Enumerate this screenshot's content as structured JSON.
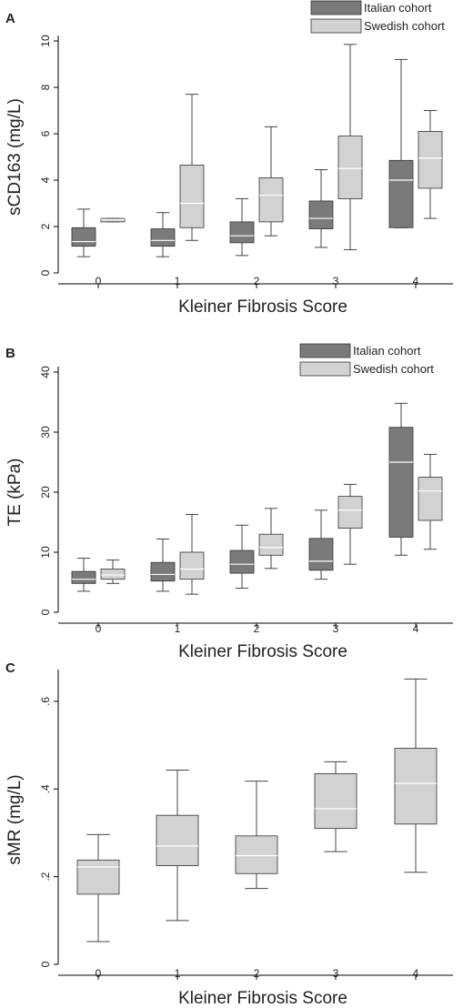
{
  "figure": {
    "colors": {
      "italian": "#7a7a7a",
      "swedish": "#d2d2d2",
      "axis": "#000000",
      "whisker": "#444444"
    }
  },
  "chart_data": [
    {
      "type": "boxplot",
      "panel": "A",
      "ylabel": "sCD163 (mg/L)",
      "xlabel": "Kleiner Fibrosis Score",
      "ylim": [
        0,
        10
      ],
      "yticks": [
        "0",
        "2",
        "4",
        "6",
        "8",
        "10"
      ],
      "ytick_values": [
        0,
        2,
        4,
        6,
        8,
        10
      ],
      "categories": [
        "0",
        "1",
        "2",
        "3",
        "4"
      ],
      "legend_position": "top-right",
      "series": [
        {
          "name": "Italian cohort",
          "color": "#7a7a7a",
          "boxes": [
            {
              "min": 0.7,
              "q1": 1.15,
              "median": 1.35,
              "q3": 1.95,
              "max": 2.75
            },
            {
              "min": 0.7,
              "q1": 1.15,
              "median": 1.4,
              "q3": 1.9,
              "max": 2.6
            },
            {
              "min": 0.75,
              "q1": 1.3,
              "median": 1.6,
              "q3": 2.2,
              "max": 3.2
            },
            {
              "min": 1.1,
              "q1": 1.9,
              "median": 2.35,
              "q3": 3.1,
              "max": 4.45
            },
            {
              "min": 1.95,
              "q1": 1.95,
              "median": 4.0,
              "q3": 4.85,
              "max": 9.2
            }
          ]
        },
        {
          "name": "Swedish cohort",
          "color": "#d2d2d2",
          "boxes": [
            {
              "min": 2.2,
              "q1": 2.2,
              "median": 2.3,
              "q3": 2.35,
              "max": 2.35
            },
            {
              "min": 1.4,
              "q1": 1.95,
              "median": 3.0,
              "q3": 4.65,
              "max": 7.7
            },
            {
              "min": 1.6,
              "q1": 2.2,
              "median": 3.35,
              "q3": 4.1,
              "max": 6.3
            },
            {
              "min": 1.0,
              "q1": 3.2,
              "median": 4.5,
              "q3": 5.9,
              "max": 9.85
            },
            {
              "min": 2.35,
              "q1": 3.65,
              "median": 4.95,
              "q3": 6.1,
              "max": 7.0
            }
          ]
        }
      ]
    },
    {
      "type": "boxplot",
      "panel": "B",
      "ylabel": "TE (kPa)",
      "xlabel": "Kleiner Fibrosis Score",
      "ylim": [
        0,
        40
      ],
      "yticks": [
        "0",
        "10",
        "20",
        "30",
        "40"
      ],
      "ytick_values": [
        0,
        10,
        20,
        30,
        40
      ],
      "categories": [
        "0",
        "1",
        "2",
        "3",
        "4"
      ],
      "legend_position": "top-right",
      "series": [
        {
          "name": "Italian cohort",
          "color": "#7a7a7a",
          "boxes": [
            {
              "min": 3.5,
              "q1": 4.8,
              "median": 5.5,
              "q3": 6.8,
              "max": 9.0
            },
            {
              "min": 3.5,
              "q1": 5.2,
              "median": 6.3,
              "q3": 8.3,
              "max": 12.2
            },
            {
              "min": 4.0,
              "q1": 6.5,
              "median": 8.0,
              "q3": 10.3,
              "max": 14.5
            },
            {
              "min": 5.5,
              "q1": 7.0,
              "median": 8.5,
              "q3": 12.3,
              "max": 17.0
            },
            {
              "min": 9.5,
              "q1": 12.5,
              "median": 25.0,
              "q3": 30.8,
              "max": 34.8
            }
          ]
        },
        {
          "name": "Swedish cohort",
          "color": "#d2d2d2",
          "boxes": [
            {
              "min": 4.8,
              "q1": 5.5,
              "median": 6.2,
              "q3": 7.2,
              "max": 8.7
            },
            {
              "min": 3.0,
              "q1": 5.5,
              "median": 7.2,
              "q3": 10.0,
              "max": 16.3
            },
            {
              "min": 7.3,
              "q1": 9.5,
              "median": 10.8,
              "q3": 13.0,
              "max": 17.3
            },
            {
              "min": 8.0,
              "q1": 14.0,
              "median": 17.0,
              "q3": 19.3,
              "max": 21.3
            },
            {
              "min": 10.5,
              "q1": 15.3,
              "median": 20.2,
              "q3": 22.5,
              "max": 26.3
            }
          ]
        }
      ]
    },
    {
      "type": "boxplot",
      "panel": "C",
      "ylabel": "sMR (mg/L)",
      "xlabel": "Kleiner Fibrosis Score",
      "ylim": [
        0,
        0.66
      ],
      "yticks": [
        "0",
        ".2",
        ".4",
        ".6"
      ],
      "ytick_values": [
        0,
        0.2,
        0.4,
        0.6
      ],
      "categories": [
        "0",
        "1",
        "2",
        "3",
        "4"
      ],
      "series": [
        {
          "name": "",
          "color": "#d2d2d2",
          "boxes": [
            {
              "min": 0.052,
              "q1": 0.16,
              "median": 0.222,
              "q3": 0.238,
              "max": 0.296
            },
            {
              "min": 0.1,
              "q1": 0.225,
              "median": 0.27,
              "q3": 0.34,
              "max": 0.443
            },
            {
              "min": 0.173,
              "q1": 0.207,
              "median": 0.248,
              "q3": 0.293,
              "max": 0.418
            },
            {
              "min": 0.257,
              "q1": 0.31,
              "median": 0.355,
              "q3": 0.435,
              "max": 0.462
            },
            {
              "min": 0.21,
              "q1": 0.32,
              "median": 0.413,
              "q3": 0.493,
              "max": 0.651
            }
          ]
        }
      ]
    }
  ]
}
